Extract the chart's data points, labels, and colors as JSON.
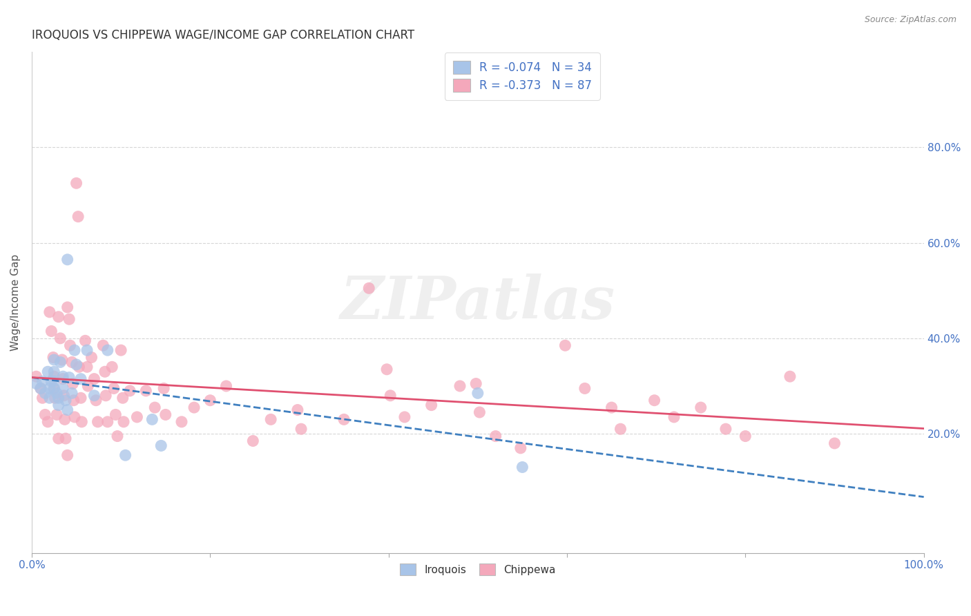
{
  "title": "IROQUOIS VS CHIPPEWA WAGE/INCOME GAP CORRELATION CHART",
  "source": "Source: ZipAtlas.com",
  "ylabel": "Wage/Income Gap",
  "xlim": [
    0.0,
    1.0
  ],
  "ylim": [
    -0.05,
    1.0
  ],
  "xticks": [
    0.0,
    0.2,
    0.4,
    0.6,
    0.8,
    1.0
  ],
  "xtick_labels": [
    "0.0%",
    "",
    "",
    "",
    "",
    "100.0%"
  ],
  "ytick_positions": [
    0.2,
    0.4,
    0.6,
    0.8
  ],
  "ytick_labels": [
    "20.0%",
    "40.0%",
    "60.0%",
    "80.0%"
  ],
  "background_color": "#ffffff",
  "grid_color": "#cccccc",
  "watermark": "ZIPatlas",
  "legend_iroquois_r": "-0.074",
  "legend_iroquois_n": "34",
  "legend_chippewa_r": "-0.373",
  "legend_chippewa_n": "87",
  "iroquois_color": "#a8c4e8",
  "chippewa_color": "#f4a8bb",
  "iroquois_line_color": "#4080c0",
  "chippewa_line_color": "#e05070",
  "iroquois_points": [
    [
      0.005,
      0.305
    ],
    [
      0.01,
      0.295
    ],
    [
      0.012,
      0.31
    ],
    [
      0.015,
      0.285
    ],
    [
      0.018,
      0.33
    ],
    [
      0.02,
      0.295
    ],
    [
      0.02,
      0.275
    ],
    [
      0.022,
      0.31
    ],
    [
      0.025,
      0.355
    ],
    [
      0.025,
      0.33
    ],
    [
      0.025,
      0.31
    ],
    [
      0.025,
      0.295
    ],
    [
      0.028,
      0.285
    ],
    [
      0.03,
      0.275
    ],
    [
      0.03,
      0.26
    ],
    [
      0.032,
      0.35
    ],
    [
      0.035,
      0.32
    ],
    [
      0.035,
      0.295
    ],
    [
      0.038,
      0.27
    ],
    [
      0.04,
      0.25
    ],
    [
      0.04,
      0.565
    ],
    [
      0.042,
      0.318
    ],
    [
      0.045,
      0.285
    ],
    [
      0.048,
      0.375
    ],
    [
      0.05,
      0.345
    ],
    [
      0.055,
      0.315
    ],
    [
      0.062,
      0.375
    ],
    [
      0.07,
      0.28
    ],
    [
      0.085,
      0.375
    ],
    [
      0.105,
      0.155
    ],
    [
      0.135,
      0.23
    ],
    [
      0.145,
      0.175
    ],
    [
      0.5,
      0.285
    ],
    [
      0.55,
      0.13
    ]
  ],
  "chippewa_points": [
    [
      0.005,
      0.32
    ],
    [
      0.01,
      0.295
    ],
    [
      0.012,
      0.275
    ],
    [
      0.015,
      0.24
    ],
    [
      0.018,
      0.225
    ],
    [
      0.02,
      0.455
    ],
    [
      0.022,
      0.415
    ],
    [
      0.024,
      0.36
    ],
    [
      0.025,
      0.32
    ],
    [
      0.025,
      0.295
    ],
    [
      0.026,
      0.275
    ],
    [
      0.028,
      0.24
    ],
    [
      0.03,
      0.19
    ],
    [
      0.03,
      0.445
    ],
    [
      0.032,
      0.4
    ],
    [
      0.034,
      0.355
    ],
    [
      0.035,
      0.315
    ],
    [
      0.036,
      0.28
    ],
    [
      0.037,
      0.23
    ],
    [
      0.038,
      0.19
    ],
    [
      0.04,
      0.155
    ],
    [
      0.04,
      0.465
    ],
    [
      0.042,
      0.44
    ],
    [
      0.043,
      0.385
    ],
    [
      0.045,
      0.35
    ],
    [
      0.046,
      0.305
    ],
    [
      0.047,
      0.27
    ],
    [
      0.048,
      0.235
    ],
    [
      0.05,
      0.725
    ],
    [
      0.052,
      0.655
    ],
    [
      0.053,
      0.34
    ],
    [
      0.055,
      0.275
    ],
    [
      0.056,
      0.225
    ],
    [
      0.06,
      0.395
    ],
    [
      0.062,
      0.34
    ],
    [
      0.063,
      0.3
    ],
    [
      0.067,
      0.36
    ],
    [
      0.07,
      0.315
    ],
    [
      0.072,
      0.27
    ],
    [
      0.074,
      0.225
    ],
    [
      0.08,
      0.385
    ],
    [
      0.082,
      0.33
    ],
    [
      0.083,
      0.28
    ],
    [
      0.085,
      0.225
    ],
    [
      0.09,
      0.34
    ],
    [
      0.092,
      0.295
    ],
    [
      0.094,
      0.24
    ],
    [
      0.096,
      0.195
    ],
    [
      0.1,
      0.375
    ],
    [
      0.102,
      0.275
    ],
    [
      0.103,
      0.225
    ],
    [
      0.11,
      0.29
    ],
    [
      0.118,
      0.235
    ],
    [
      0.128,
      0.29
    ],
    [
      0.138,
      0.255
    ],
    [
      0.148,
      0.295
    ],
    [
      0.15,
      0.24
    ],
    [
      0.168,
      0.225
    ],
    [
      0.182,
      0.255
    ],
    [
      0.2,
      0.27
    ],
    [
      0.218,
      0.3
    ],
    [
      0.248,
      0.185
    ],
    [
      0.268,
      0.23
    ],
    [
      0.298,
      0.25
    ],
    [
      0.302,
      0.21
    ],
    [
      0.35,
      0.23
    ],
    [
      0.378,
      0.505
    ],
    [
      0.398,
      0.335
    ],
    [
      0.402,
      0.28
    ],
    [
      0.418,
      0.235
    ],
    [
      0.448,
      0.26
    ],
    [
      0.48,
      0.3
    ],
    [
      0.498,
      0.305
    ],
    [
      0.502,
      0.245
    ],
    [
      0.52,
      0.195
    ],
    [
      0.548,
      0.17
    ],
    [
      0.598,
      0.385
    ],
    [
      0.62,
      0.295
    ],
    [
      0.65,
      0.255
    ],
    [
      0.66,
      0.21
    ],
    [
      0.698,
      0.27
    ],
    [
      0.72,
      0.235
    ],
    [
      0.75,
      0.255
    ],
    [
      0.778,
      0.21
    ],
    [
      0.8,
      0.195
    ],
    [
      0.85,
      0.32
    ],
    [
      0.9,
      0.18
    ]
  ]
}
